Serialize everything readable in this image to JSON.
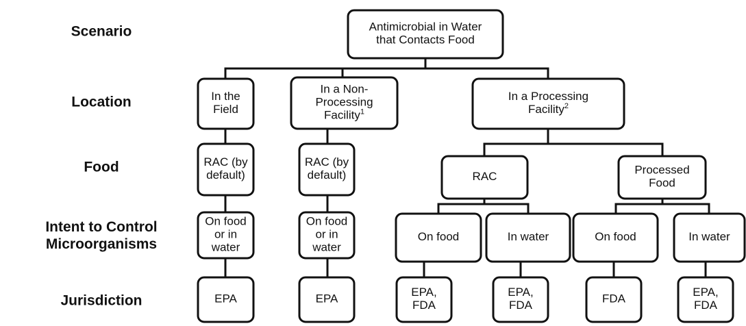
{
  "row_labels": [
    {
      "lines": [
        "Scenario"
      ]
    },
    {
      "lines": [
        "Location"
      ]
    },
    {
      "lines": [
        "Food"
      ]
    },
    {
      "lines": [
        "Intent to Control",
        "Microorganisms"
      ]
    },
    {
      "lines": [
        "Jurisdiction"
      ]
    }
  ],
  "nodes": [
    {
      "lines": [
        "Antimicrobial in Water",
        "that Contacts Food"
      ]
    },
    {
      "lines": [
        "In the",
        "Field"
      ]
    },
    {
      "lines": [
        "In a Non-",
        "Processing",
        "Facility"
      ],
      "sup": "1"
    },
    {
      "lines": [
        "In a Processing",
        "Facility"
      ],
      "sup": "2"
    },
    {
      "lines": [
        "RAC (by",
        "default)"
      ]
    },
    {
      "lines": [
        "RAC (by",
        "default)"
      ]
    },
    {
      "lines": [
        "RAC"
      ]
    },
    {
      "lines": [
        "Processed",
        "Food"
      ]
    },
    {
      "lines": [
        "On food",
        "or in",
        "water"
      ]
    },
    {
      "lines": [
        "On food",
        "or in",
        "water"
      ]
    },
    {
      "lines": [
        "On food"
      ]
    },
    {
      "lines": [
        "In water"
      ]
    },
    {
      "lines": [
        "On food"
      ]
    },
    {
      "lines": [
        "In water"
      ]
    },
    {
      "lines": [
        "EPA"
      ]
    },
    {
      "lines": [
        "EPA"
      ]
    },
    {
      "lines": [
        "EPA,",
        "FDA"
      ]
    },
    {
      "lines": [
        "EPA,",
        "FDA"
      ]
    },
    {
      "lines": [
        "FDA"
      ]
    },
    {
      "lines": [
        "EPA,",
        "FDA"
      ]
    }
  ]
}
